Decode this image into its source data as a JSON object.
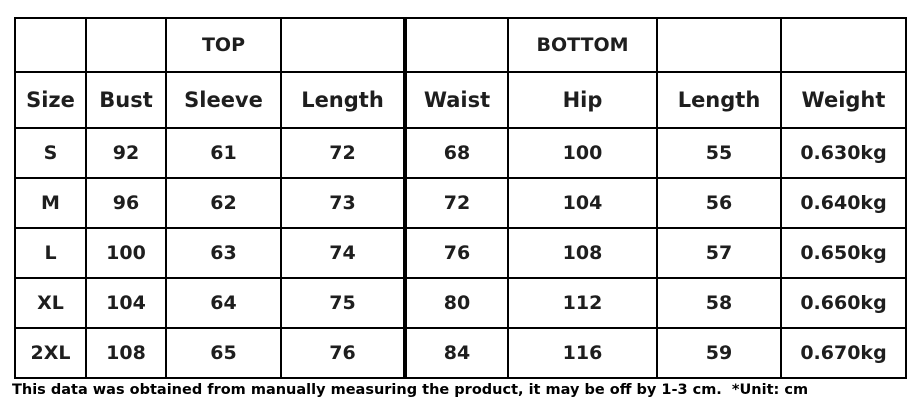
{
  "group_headers": {
    "top": "TOP",
    "bottom": "BOTTOM"
  },
  "columns": [
    "Size",
    "Bust",
    "Sleeve",
    "Length",
    "Waist",
    "Hip",
    "Length",
    "Weight"
  ],
  "rows": [
    [
      "S",
      "92",
      "61",
      "72",
      "68",
      "100",
      "55",
      "0.630kg"
    ],
    [
      "M",
      "96",
      "62",
      "73",
      "72",
      "104",
      "56",
      "0.640kg"
    ],
    [
      "L",
      "100",
      "63",
      "74",
      "76",
      "108",
      "57",
      "0.650kg"
    ],
    [
      "XL",
      "104",
      "64",
      "75",
      "80",
      "112",
      "58",
      "0.660kg"
    ],
    [
      "2XL",
      "108",
      "65",
      "76",
      "84",
      "116",
      "59",
      "0.670kg"
    ]
  ],
  "note": "This data was obtained from manually measuring the product, it may be off by 1-3 cm.  *Unit: cm"
}
